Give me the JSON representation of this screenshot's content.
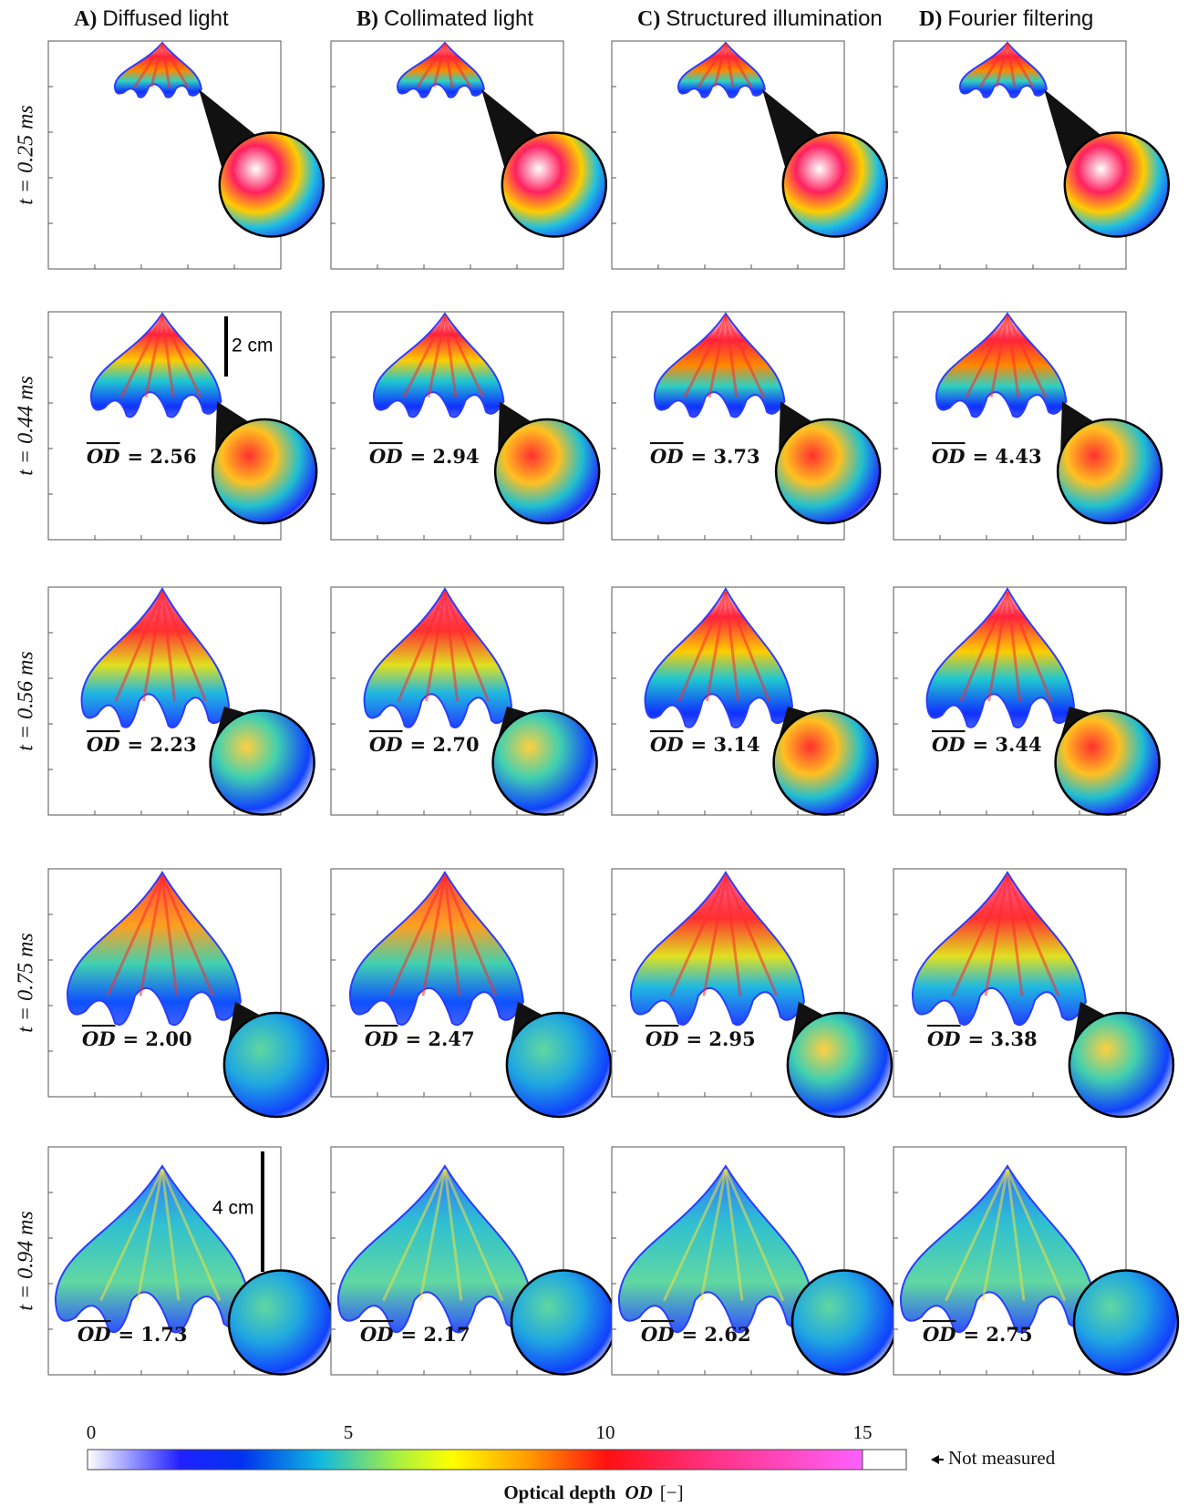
{
  "columns": [
    {
      "letter": "A)",
      "title": "Diffused light"
    },
    {
      "letter": "B)",
      "title": "Collimated light"
    },
    {
      "letter": "C)",
      "title": "Structured illumination"
    },
    {
      "letter": "D)",
      "title": "Fourier filtering"
    }
  ],
  "rows": [
    {
      "time": "t = 0.25 ms"
    },
    {
      "time": "t = 0.44 ms",
      "od": [
        "= 2.56",
        "= 2.94",
        "= 3.73",
        "= 4.43"
      ]
    },
    {
      "time": "t = 0.56 ms",
      "od": [
        "= 2.23",
        "= 2.70",
        "= 3.14",
        "= 3.44"
      ]
    },
    {
      "time": "t = 0.75 ms",
      "od": [
        "= 2.00",
        "= 2.47",
        "= 2.95",
        "= 3.38"
      ]
    },
    {
      "time": "t = 0.94 ms",
      "od": [
        "= 1.73",
        "= 2.17",
        "= 2.62",
        "= 2.75"
      ]
    }
  ],
  "od_symbol": "OD",
  "scale_bars": [
    "2 cm",
    "4 cm"
  ],
  "colorbar": {
    "ticks": [
      0,
      5,
      10,
      15
    ],
    "title": "Optical depth",
    "symbol": "OD",
    "unit": "[−]",
    "not_measured": "Not measured"
  }
}
